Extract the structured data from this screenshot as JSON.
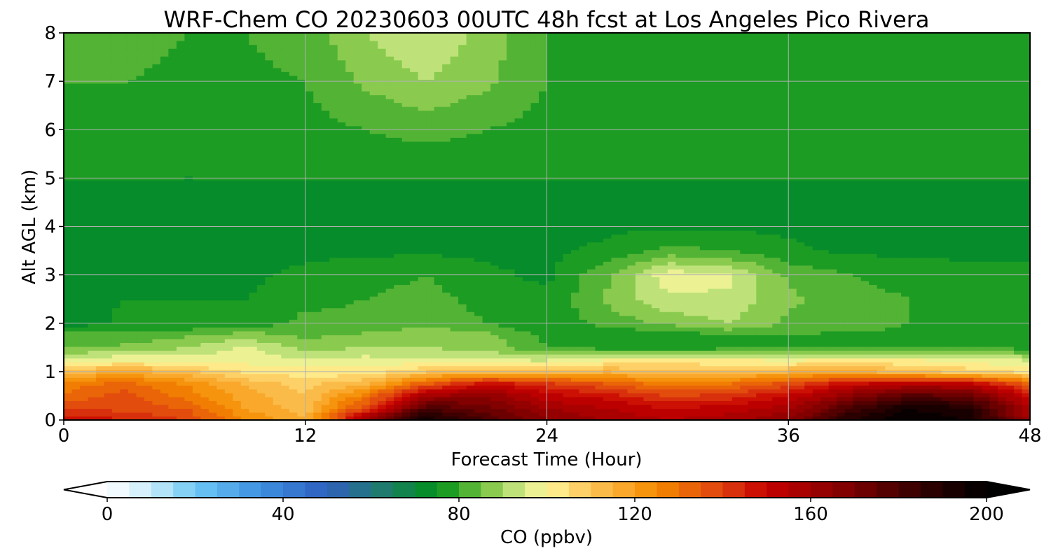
{
  "chart_data": {
    "type": "heatmap",
    "title": "WRF-Chem CO  20230603 00UTC 48h fcst at Los Angeles Pico Rivera",
    "xlabel": "Forecast Time (Hour)",
    "ylabel": "Alt AGL (km)",
    "xlim": [
      0,
      48
    ],
    "ylim": [
      0,
      8
    ],
    "xticks": [
      0,
      12,
      24,
      36,
      48
    ],
    "yticks": [
      0,
      1,
      2,
      3,
      4,
      5,
      6,
      7,
      8
    ],
    "grid": true,
    "colorbar": {
      "label": "CO  (ppbv)",
      "range": [
        0,
        200
      ],
      "ticks": [
        0,
        40,
        80,
        120,
        160,
        200
      ],
      "step": 5,
      "extend": "both",
      "orientation": "horizontal",
      "palette": [
        {
          "v": 0,
          "c": "#ffffff"
        },
        {
          "v": 10,
          "c": "#c8ecfa"
        },
        {
          "v": 20,
          "c": "#6ec8f5"
        },
        {
          "v": 35,
          "c": "#3d8fe0"
        },
        {
          "v": 50,
          "c": "#2f5fbe"
        },
        {
          "v": 62,
          "c": "#1f7a70"
        },
        {
          "v": 75,
          "c": "#00901a"
        },
        {
          "v": 86,
          "c": "#7ac442"
        },
        {
          "v": 95,
          "c": "#d8ee8e"
        },
        {
          "v": 100,
          "c": "#fff69a"
        },
        {
          "v": 110,
          "c": "#fcc556"
        },
        {
          "v": 125,
          "c": "#f58a00"
        },
        {
          "v": 140,
          "c": "#de4010"
        },
        {
          "v": 150,
          "c": "#c60000"
        },
        {
          "v": 170,
          "c": "#780000"
        },
        {
          "v": 185,
          "c": "#320000"
        },
        {
          "v": 200,
          "c": "#000000"
        }
      ]
    },
    "x_hours": [
      0,
      3,
      6,
      9,
      12,
      15,
      18,
      21,
      24,
      27,
      30,
      33,
      36,
      39,
      42,
      45,
      48
    ],
    "z_km": [
      0,
      0.25,
      0.5,
      0.75,
      1.0,
      1.25,
      1.5,
      1.75,
      2.0,
      2.5,
      3.0,
      3.5,
      4.0,
      5.0,
      6.0,
      7.0,
      8.0
    ],
    "co_ppbv": [
      [
        150,
        145,
        140,
        125,
        115,
        160,
        195,
        180,
        165,
        160,
        155,
        158,
        165,
        190,
        200,
        195,
        160
      ],
      [
        140,
        138,
        135,
        120,
        112,
        140,
        180,
        172,
        160,
        155,
        150,
        152,
        158,
        180,
        195,
        190,
        155
      ],
      [
        130,
        138,
        128,
        118,
        110,
        128,
        160,
        165,
        152,
        148,
        140,
        142,
        150,
        165,
        178,
        175,
        148
      ],
      [
        128,
        132,
        125,
        114,
        108,
        115,
        135,
        150,
        142,
        135,
        128,
        130,
        138,
        150,
        155,
        152,
        135
      ],
      [
        112,
        118,
        112,
        104,
        102,
        102,
        110,
        112,
        112,
        115,
        112,
        112,
        115,
        118,
        112,
        108,
        104
      ],
      [
        97,
        99,
        98,
        98,
        96,
        97,
        96,
        95,
        94,
        100,
        102,
        100,
        99,
        100,
        100,
        98,
        94
      ],
      [
        84,
        86,
        90,
        96,
        88,
        90,
        90,
        88,
        80,
        78,
        76,
        79,
        80,
        80,
        80,
        80,
        78
      ],
      [
        82,
        82,
        84,
        88,
        84,
        86,
        88,
        87,
        78,
        76,
        76,
        80,
        80,
        78,
        78,
        78,
        76
      ],
      [
        72,
        76,
        76,
        76,
        82,
        82,
        84,
        80,
        76,
        82,
        86,
        90,
        84,
        84,
        80,
        76,
        76
      ],
      [
        73,
        75,
        75,
        75,
        78,
        80,
        82,
        78,
        76,
        86,
        94,
        94,
        86,
        82,
        80,
        76,
        76
      ],
      [
        74,
        74,
        74,
        74,
        76,
        78,
        80,
        76,
        74,
        84,
        98,
        96,
        84,
        80,
        78,
        76,
        76
      ],
      [
        74,
        74,
        74,
        74,
        74,
        74,
        74,
        74,
        74,
        76,
        82,
        80,
        76,
        74,
        74,
        74,
        74
      ],
      [
        74,
        74,
        74,
        74,
        74,
        74,
        74,
        74,
        74,
        74,
        74,
        74,
        74,
        74,
        74,
        74,
        74
      ],
      [
        75,
        75,
        75,
        75,
        75,
        75,
        75,
        75,
        75,
        75,
        75,
        75,
        75,
        75,
        75,
        75,
        75
      ],
      [
        76,
        76,
        76,
        77,
        78,
        80,
        82,
        80,
        78,
        76,
        76,
        75,
        75,
        75,
        75,
        75,
        75
      ],
      [
        80,
        80,
        79,
        79,
        80,
        86,
        90,
        86,
        80,
        78,
        78,
        76,
        75,
        75,
        75,
        75,
        75
      ],
      [
        82,
        82,
        80,
        80,
        82,
        90,
        95,
        88,
        80,
        78,
        76,
        75,
        75,
        75,
        75,
        75,
        75
      ]
    ]
  }
}
